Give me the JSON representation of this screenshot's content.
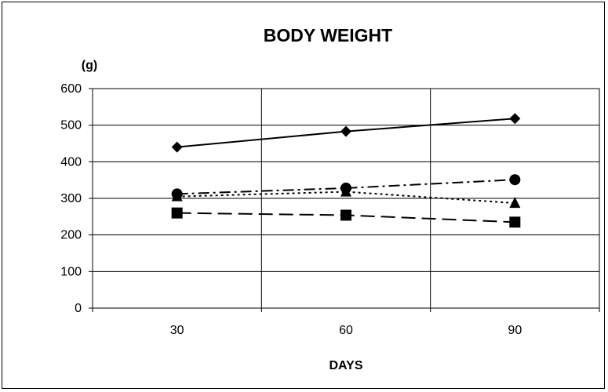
{
  "chart_data": {
    "type": "line",
    "title": "BODY WEIGHT",
    "y_unit_label": "(g)",
    "xlabel": "DAYS",
    "ylabel": "",
    "categories": [
      "30",
      "60",
      "90"
    ],
    "ylim": [
      0,
      600
    ],
    "yticks": [
      "0",
      "100",
      "200",
      "300",
      "400",
      "500",
      "600"
    ],
    "grid": true,
    "legend": "none",
    "series": [
      {
        "values": [
          440,
          483,
          518
        ],
        "marker": "diamond",
        "line_style": "solid"
      },
      {
        "values": [
          312,
          328,
          351
        ],
        "marker": "circle",
        "line_style": "dash-dot"
      },
      {
        "values": [
          305,
          318,
          287
        ],
        "marker": "triangle",
        "line_style": "dotted"
      },
      {
        "values": [
          260,
          254,
          235
        ],
        "marker": "square",
        "line_style": "dashed"
      }
    ],
    "colors": {
      "line": "#000000",
      "background": "#ffffff",
      "grid": "#000000"
    }
  }
}
